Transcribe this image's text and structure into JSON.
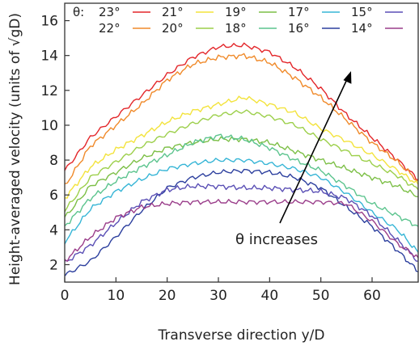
{
  "chart_data": {
    "type": "line",
    "xlabel": "Transverse direction y/D",
    "ylabel": "Height-averaged velocity (units of √gD)",
    "xlim": [
      0,
      69
    ],
    "ylim": [
      1,
      17
    ],
    "xticks": [
      "0",
      "10",
      "20",
      "30",
      "40",
      "50",
      "60"
    ],
    "yticks": [
      "2",
      "4",
      "6",
      "8",
      "10",
      "12",
      "14",
      "16"
    ],
    "legend_title": "θ:",
    "legend_position": "top",
    "annotation": "θ increases",
    "grid": false,
    "series": [
      {
        "name": "23°",
        "color": "#e3262a",
        "x": [
          0,
          5,
          10,
          15,
          20,
          25,
          30,
          35,
          40,
          45,
          50,
          55,
          60,
          65,
          69
        ],
        "values": [
          7.4,
          9.3,
          10.5,
          11.7,
          12.9,
          13.9,
          14.5,
          14.6,
          14.2,
          13.3,
          12.1,
          10.6,
          9.3,
          8.0,
          6.9
        ]
      },
      {
        "name": "22°",
        "color": "#f08a2a",
        "x": [
          0,
          5,
          10,
          15,
          20,
          25,
          30,
          35,
          40,
          45,
          50,
          55,
          60,
          65,
          69
        ],
        "values": [
          6.5,
          8.8,
          10.0,
          11.2,
          12.6,
          13.5,
          13.9,
          14.0,
          13.6,
          12.7,
          11.6,
          10.3,
          9.0,
          7.9,
          6.8
        ]
      },
      {
        "name": "21°",
        "color": "#f3e33c",
        "x": [
          0,
          5,
          10,
          15,
          20,
          25,
          30,
          35,
          40,
          45,
          50,
          55,
          60,
          65,
          69
        ],
        "values": [
          5.8,
          7.6,
          8.6,
          9.4,
          10.2,
          10.8,
          11.2,
          11.6,
          11.2,
          10.7,
          9.8,
          9.1,
          8.3,
          7.4,
          6.6
        ]
      },
      {
        "name": "20°",
        "color": "#9ccf4a",
        "x": [
          0,
          5,
          10,
          15,
          20,
          25,
          30,
          35,
          40,
          45,
          50,
          55,
          60,
          65,
          69
        ],
        "values": [
          5.1,
          7.0,
          7.9,
          8.8,
          9.5,
          10.1,
          10.6,
          10.8,
          10.5,
          10.0,
          9.2,
          8.5,
          7.8,
          7.1,
          6.3
        ]
      },
      {
        "name": "19°",
        "color": "#7cbf46",
        "x": [
          0,
          5,
          10,
          15,
          20,
          25,
          30,
          35,
          40,
          45,
          50,
          55,
          60,
          65,
          69
        ],
        "values": [
          4.7,
          6.5,
          7.3,
          8.1,
          8.7,
          9.0,
          9.2,
          9.2,
          9.0,
          8.5,
          8.0,
          7.5,
          7.0,
          6.5,
          5.9
        ]
      },
      {
        "name": "18°",
        "color": "#5cc48e",
        "x": [
          0,
          5,
          10,
          15,
          20,
          25,
          30,
          35,
          40,
          45,
          50,
          55,
          60,
          65,
          69
        ],
        "values": [
          4.2,
          5.8,
          6.8,
          7.6,
          8.3,
          9.0,
          9.4,
          9.2,
          8.7,
          8.0,
          7.4,
          6.5,
          5.5,
          4.8,
          4.2
        ]
      },
      {
        "name": "17°",
        "color": "#36b5d6",
        "x": [
          0,
          5,
          10,
          15,
          20,
          25,
          30,
          35,
          40,
          45,
          50,
          55,
          60,
          65,
          69
        ],
        "values": [
          3.3,
          5.2,
          6.2,
          6.9,
          7.5,
          7.8,
          8.0,
          8.0,
          7.8,
          7.5,
          7.0,
          6.1,
          5.0,
          4.0,
          2.7
        ]
      },
      {
        "name": "16°",
        "color": "#2c3f9e",
        "x": [
          0,
          5,
          10,
          15,
          20,
          25,
          30,
          35,
          40,
          45,
          50,
          55,
          60,
          65,
          69
        ],
        "values": [
          1.4,
          2.2,
          3.6,
          5.1,
          6.4,
          7.0,
          7.3,
          7.4,
          7.3,
          7.0,
          6.4,
          5.3,
          4.2,
          2.8,
          1.6
        ]
      },
      {
        "name": "15°",
        "color": "#5a4fb5",
        "x": [
          0,
          5,
          10,
          15,
          20,
          25,
          30,
          35,
          40,
          45,
          50,
          55,
          60,
          65,
          69
        ],
        "values": [
          2.1,
          3.1,
          4.4,
          5.6,
          6.3,
          6.5,
          6.5,
          6.4,
          6.4,
          6.3,
          6.2,
          5.8,
          4.8,
          3.4,
          2.2
        ]
      },
      {
        "name": "14°",
        "color": "#9a3d8a",
        "x": [
          0,
          5,
          10,
          15,
          20,
          25,
          30,
          35,
          40,
          45,
          50,
          55,
          60,
          65,
          69
        ],
        "values": [
          2.2,
          3.6,
          4.7,
          5.3,
          5.5,
          5.6,
          5.6,
          5.6,
          5.6,
          5.6,
          5.6,
          5.5,
          4.5,
          3.2,
          2.4
        ]
      }
    ]
  }
}
